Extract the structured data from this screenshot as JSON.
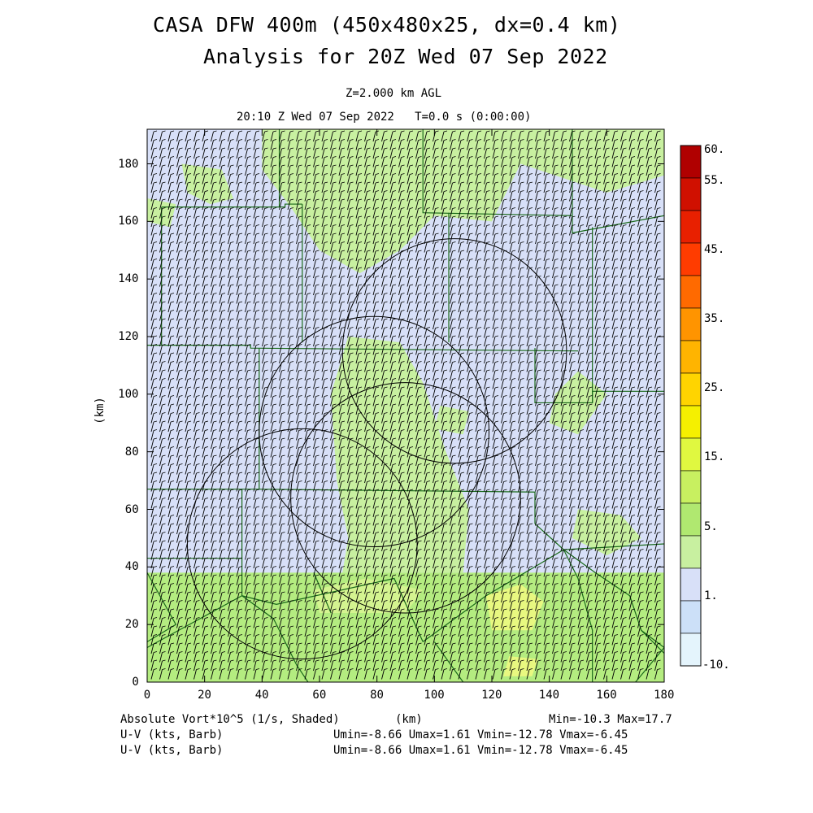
{
  "header": {
    "title_line1": "CASA DFW 400m (450x480x25, dx=0.4 km)",
    "title_line2": "Analysis for 20Z Wed 07 Sep 2022",
    "level": "Z=2.000 km AGL",
    "time": "20:10 Z Wed 07 Sep 2022   T=0.0 s (0:00:00)"
  },
  "axes": {
    "xlabel": "(km)",
    "ylabel": "(km)",
    "xticks": [
      "0",
      "20",
      "40",
      "60",
      "80",
      "100",
      "120",
      "140",
      "160",
      "180"
    ],
    "yticks": [
      "0",
      "20",
      "40",
      "60",
      "80",
      "100",
      "120",
      "140",
      "160",
      "180"
    ],
    "xlim": [
      0,
      180
    ],
    "ylim": [
      0,
      192
    ]
  },
  "colorbar": {
    "labels": [
      "60.",
      "55.",
      "45.",
      "35.",
      "25.",
      "15.",
      "5.",
      "1.",
      "-10."
    ],
    "colors": [
      "#b00000",
      "#d01000",
      "#e82000",
      "#ff3c00",
      "#ff6a00",
      "#ff9400",
      "#ffb400",
      "#ffd400",
      "#f5f000",
      "#e0f840",
      "#c8f060",
      "#b0e870",
      "#c8f0a0",
      "#d8e0f8",
      "#cce0f8",
      "#e4f4fc"
    ]
  },
  "footer": {
    "field": "Absolute Vort*10^5 (1/s, Shaded)",
    "xunit": "(km)",
    "minmax": "Min=-10.3 Max=17.7",
    "barb1_label": "U-V (kts, Barb)",
    "barb1_stats": "Umin=-8.66 Umax=1.61 Vmin=-12.78 Vmax=-6.45",
    "barb2_label": "U-V (kts, Barb)",
    "barb2_stats": "Umin=-8.66 Umax=1.61 Vmin=-12.78 Vmax=-6.45"
  },
  "map_data": {
    "radar_rings_km": [
      {
        "cx": 107,
        "cy": 115,
        "r": 39
      },
      {
        "cx": 79,
        "cy": 87,
        "r": 40
      },
      {
        "cx": 90,
        "cy": 64,
        "r": 40
      },
      {
        "cx": 54,
        "cy": 48,
        "r": 40
      }
    ],
    "colors": {
      "light_blue": "#d8e0f8",
      "light_green": "#c8f0a0",
      "green": "#b4ec80",
      "yellow_green": "#e8f880",
      "county_line": "#1a6a1a"
    }
  }
}
